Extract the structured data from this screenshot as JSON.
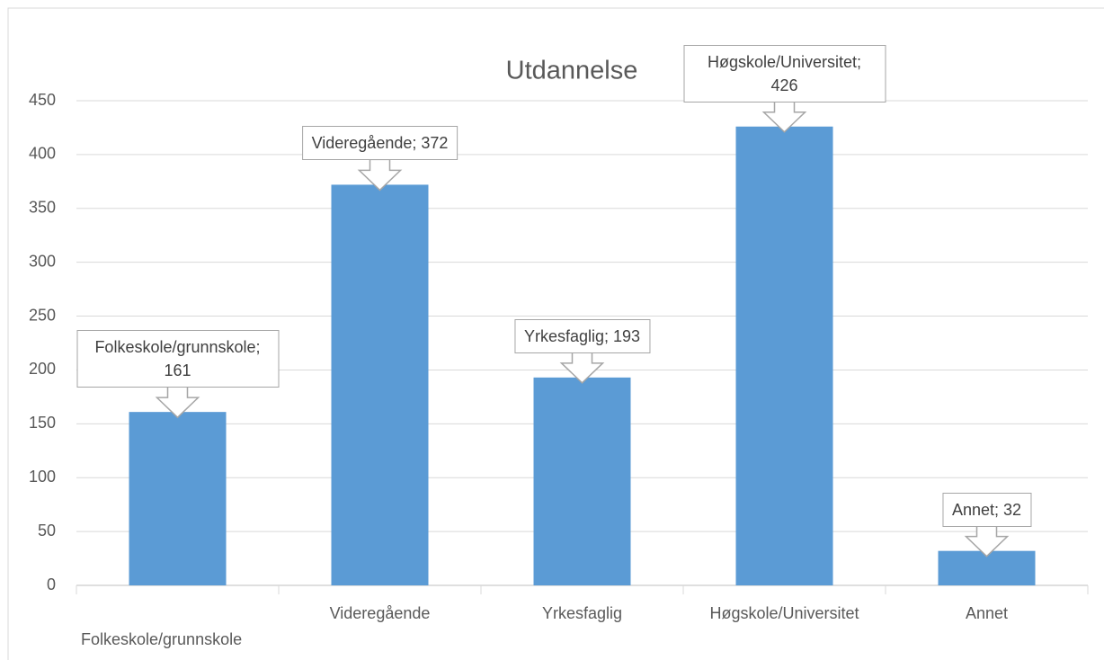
{
  "chart_data": {
    "type": "bar",
    "title": "Utdannelse",
    "categories": [
      "Folkeskole/grunnskole",
      "Videregående",
      "Yrkesfaglig",
      "Høgskole/Universitet",
      "Annet"
    ],
    "values": [
      161,
      372,
      193,
      426,
      32
    ],
    "value_labels": [
      "Folkeskole/grunnskole; 161",
      "Videregående; 372",
      "Yrkesfaglig; 193",
      "Høgskole/Universitet; 426",
      "Annet; 32"
    ],
    "color": "#5b9bd5",
    "ylim": [
      0,
      450
    ],
    "yticks": [
      0,
      50,
      100,
      150,
      200,
      250,
      300,
      350,
      400,
      450
    ],
    "grid": true
  }
}
